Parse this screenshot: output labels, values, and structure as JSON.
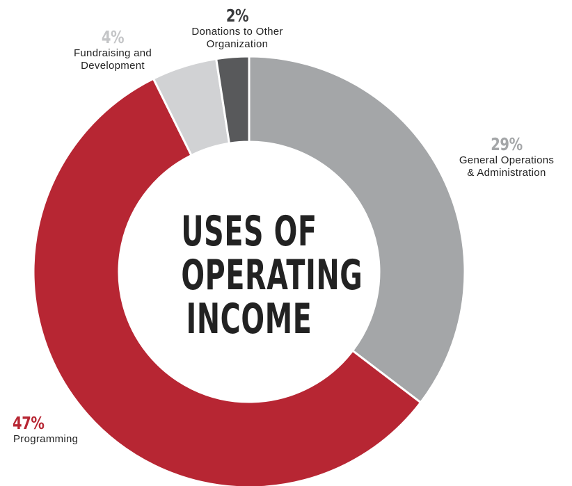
{
  "chart_data": {
    "type": "pie",
    "title_lines": [
      "USES OF",
      "OPERATING",
      "INCOME"
    ],
    "slices": [
      {
        "label_lines": [
          "General Operations",
          "& Administration"
        ],
        "value": 29,
        "pct_text": "29%",
        "color": "#a4a6a8",
        "pct_color": "#a4a6a8"
      },
      {
        "label_lines": [
          "Programming"
        ],
        "value": 47,
        "pct_text": "47%",
        "color": "#b72633",
        "pct_color": "#b72633"
      },
      {
        "label_lines": [
          "Fundraising and",
          "Development"
        ],
        "value": 4,
        "pct_text": "4%",
        "color": "#d1d2d4",
        "pct_color": "#c4c5c7"
      },
      {
        "label_lines": [
          "Donations to Other",
          "Organization"
        ],
        "value": 2,
        "pct_text": "2%",
        "color": "#58595b",
        "pct_color": "#3a3b3d"
      }
    ]
  }
}
